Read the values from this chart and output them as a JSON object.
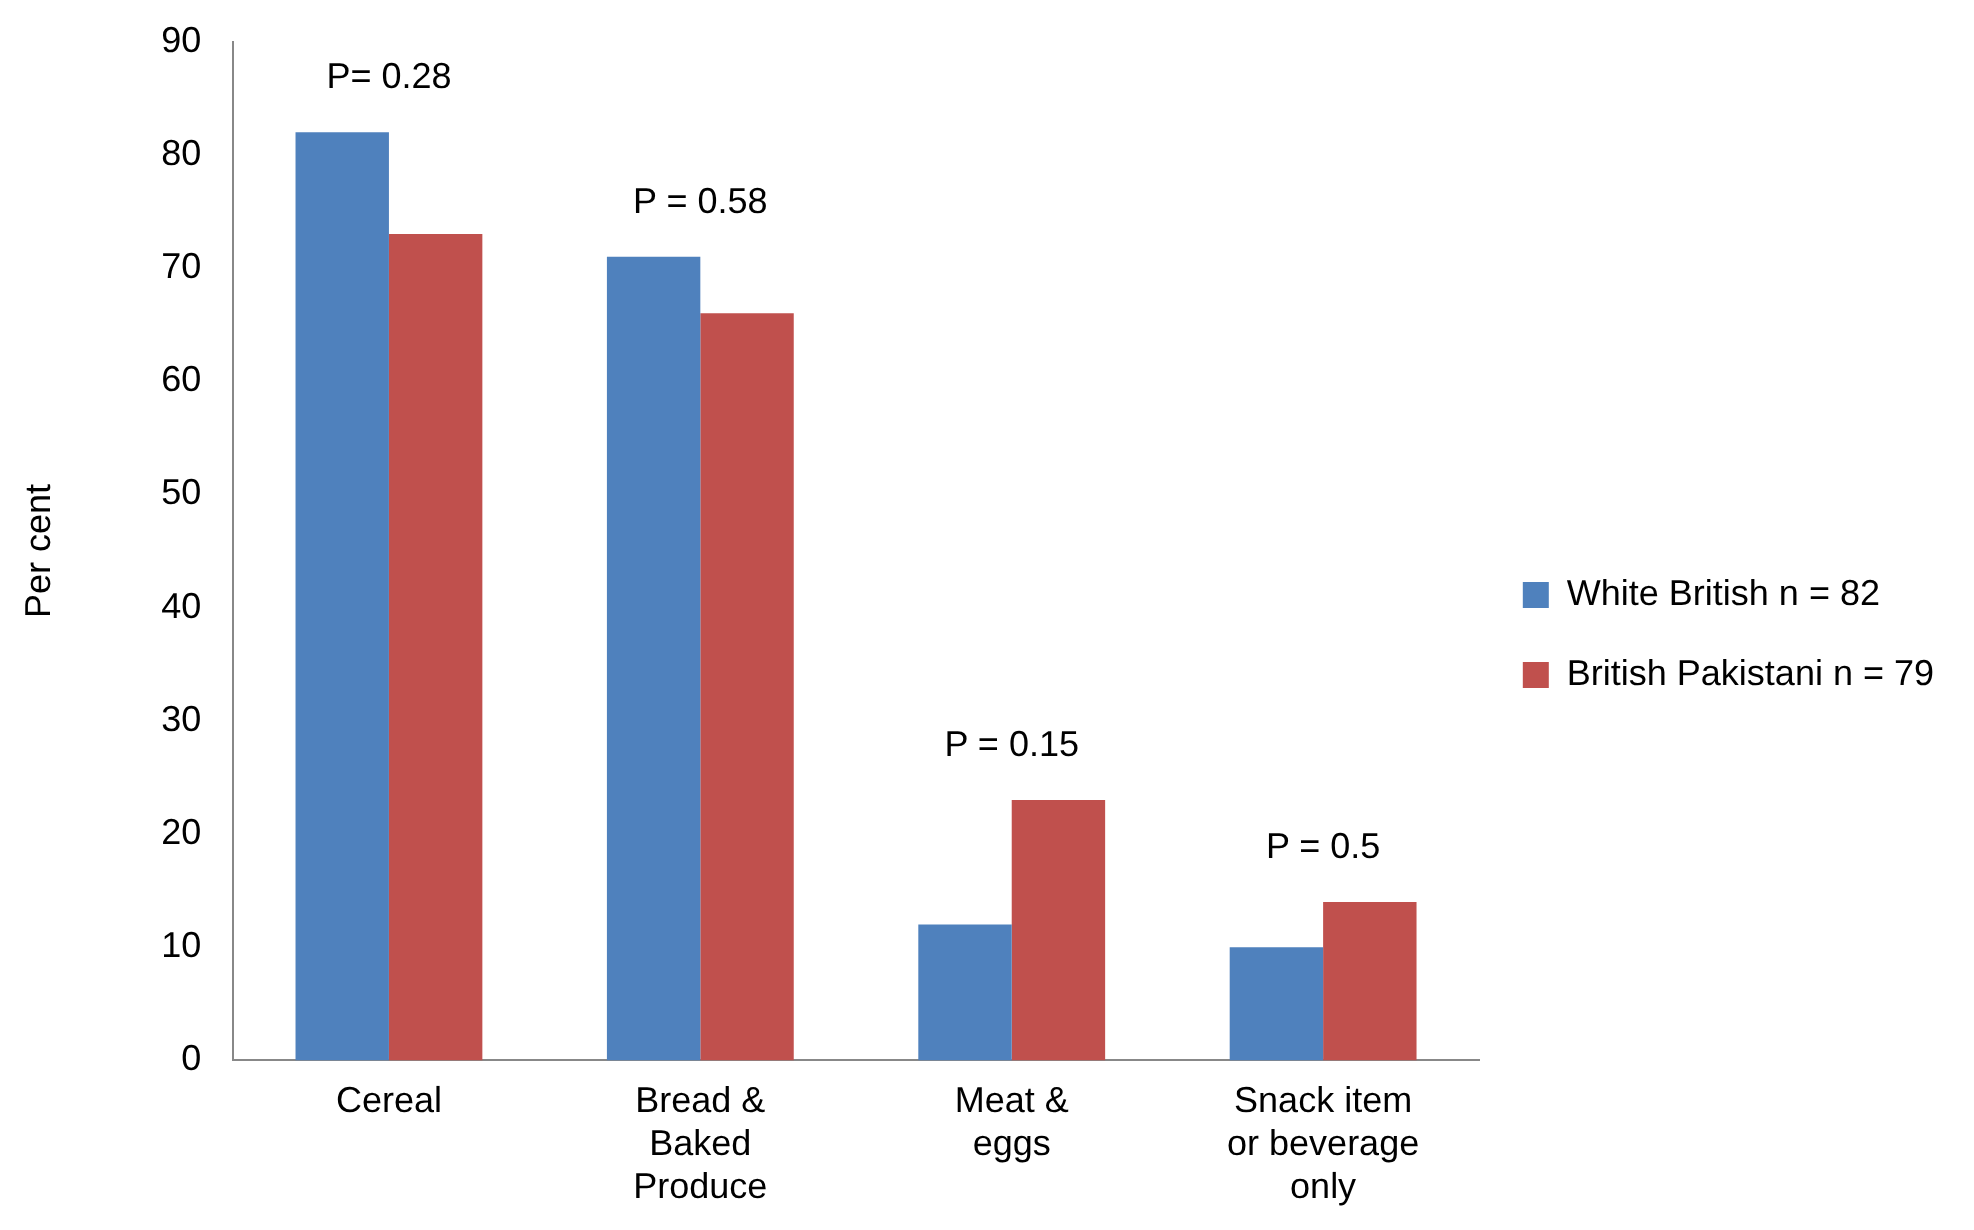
{
  "chart_data": {
    "type": "bar",
    "ylabel": "Per cent",
    "categories": [
      "Cereal",
      "Bread & Baked Produce",
      "Meat & eggs",
      "Snack item or beverage only"
    ],
    "series": [
      {
        "name": "White British n = 82",
        "color": "#4f81bd",
        "values": [
          82,
          71,
          12,
          10
        ]
      },
      {
        "name": "British Pakistani n = 79",
        "color": "#c0504d",
        "values": [
          73,
          66,
          23,
          14
        ]
      }
    ],
    "ylim": [
      0,
      90
    ],
    "yticks": [
      0,
      10,
      20,
      30,
      40,
      50,
      60,
      70,
      80,
      90
    ],
    "grid": false,
    "legend": "right",
    "annotations": [
      "P= 0.28",
      "P = 0.58",
      "P = 0.15",
      "P = 0.5"
    ]
  }
}
